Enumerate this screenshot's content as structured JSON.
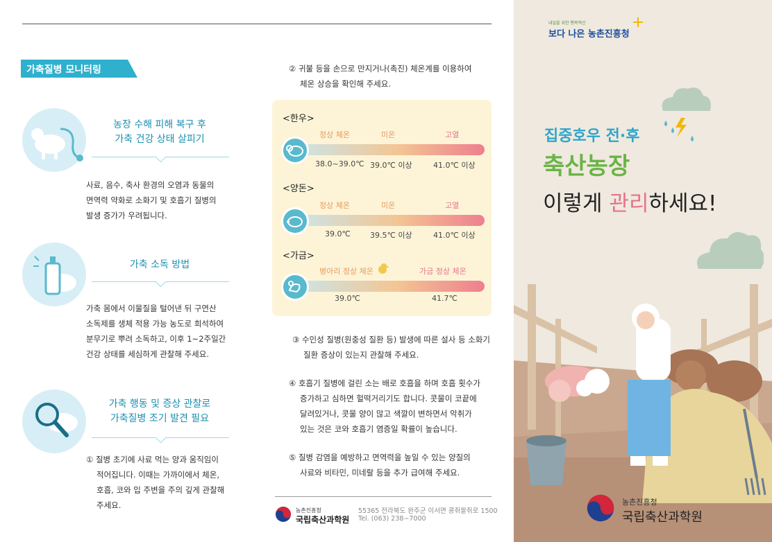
{
  "header": {
    "tag": "가축질병 모니터링"
  },
  "left": {
    "sec1": {
      "title1": "농장 수해 피해 복구 후",
      "title2": "가축 건강 상태 살피기",
      "lines": [
        "사료, 음수, 축사 환경의 오염과 동물의",
        "면역력 약화로 소화기 및 호흡기 질병의",
        "발생 증가가 우려됩니다."
      ]
    },
    "sec2": {
      "title1": "가축 소독 방법",
      "lines": [
        "가축 몸에서 이물질을 털어낸 뒤 구연산",
        "소독제를 생체 적용 가능 농도로 희석하여",
        "분무기로 뿌려 소독하고, 이후 1~2주일간",
        "건강 상태를 세심하게 관찰해 주세요."
      ]
    },
    "sec3": {
      "title1": "가축 행동 및 증상 관찰로",
      "title2": "가축질병 조기 발견 필요",
      "lines": [
        "① 질병 초기에 사료 먹는 양과 움직임이",
        "적어집니다. 이때는 가까이에서 체온,",
        "호흡, 코와 입 주변을 주의 깊게 관찰해",
        "주세요."
      ]
    }
  },
  "middle": {
    "item2": [
      "② 귀불 등을 손으로 만지거나(촉진) 체온계를 이용하여",
      "체온 상승을 확인해 주세요."
    ],
    "panel": {
      "hanwoo": {
        "label": "<한우>",
        "cats": [
          "정상 체온",
          "미온",
          "고열"
        ],
        "vals": [
          "38.0~39.0℃",
          "39.0℃ 이상",
          "41.0℃ 이상"
        ]
      },
      "yangdon": {
        "label": "<양돈>",
        "cats": [
          "정상 체온",
          "미온",
          "고열"
        ],
        "vals": [
          "39.0℃",
          "39.5℃ 이상",
          "41.0℃ 이상"
        ]
      },
      "gageum": {
        "label": "<가금>",
        "cats": [
          "병아리 정상 체온",
          "가금 정상 체온"
        ],
        "vals": [
          "39.0℃",
          "41.7℃"
        ]
      }
    },
    "item3": [
      "③ 수인성 질병(원충성 질환 등) 발생에 따른 설사 등 소화기",
      "질환 증상이 있는지 관찰해 주세요."
    ],
    "item4": [
      "④ 호흡기 질병에 걸린 소는 배로 호흡을 하며 호흡 횟수가",
      "증가하고 심하면 헐떡거리기도 합니다. 콧물이 코끝에",
      "달려있거나, 콧물 양이 많고 색깔이 변하면서 악취가",
      "있는 것은 코와 호흡기 염증일 확률이 높습니다."
    ],
    "item5": [
      "⑤ 질병 감염을 예방하고 면역력을 높일 수 있는 양질의",
      "사료와 비타민, 미네랄 등을 추가 급여해 주세요."
    ],
    "footer": {
      "org_small": "농촌진흥청",
      "org": "국립축산과학원",
      "address": "55365 전라북도 완주군 이서면 콩쥐팥쥐로 1500",
      "tel": "Tel. (063) 238−7000"
    }
  },
  "cover": {
    "logo_sub": "내일을 위한 행복혁신",
    "logo_main": "보다 나은 농촌진흥청",
    "title1": "집중호우 전·후",
    "title2": "축산농장",
    "title3_a": "이렇게 ",
    "title3_hl": "관리",
    "title3_b": "하세요!",
    "org_small": "농촌진흥청",
    "org": "국립축산과학원"
  }
}
